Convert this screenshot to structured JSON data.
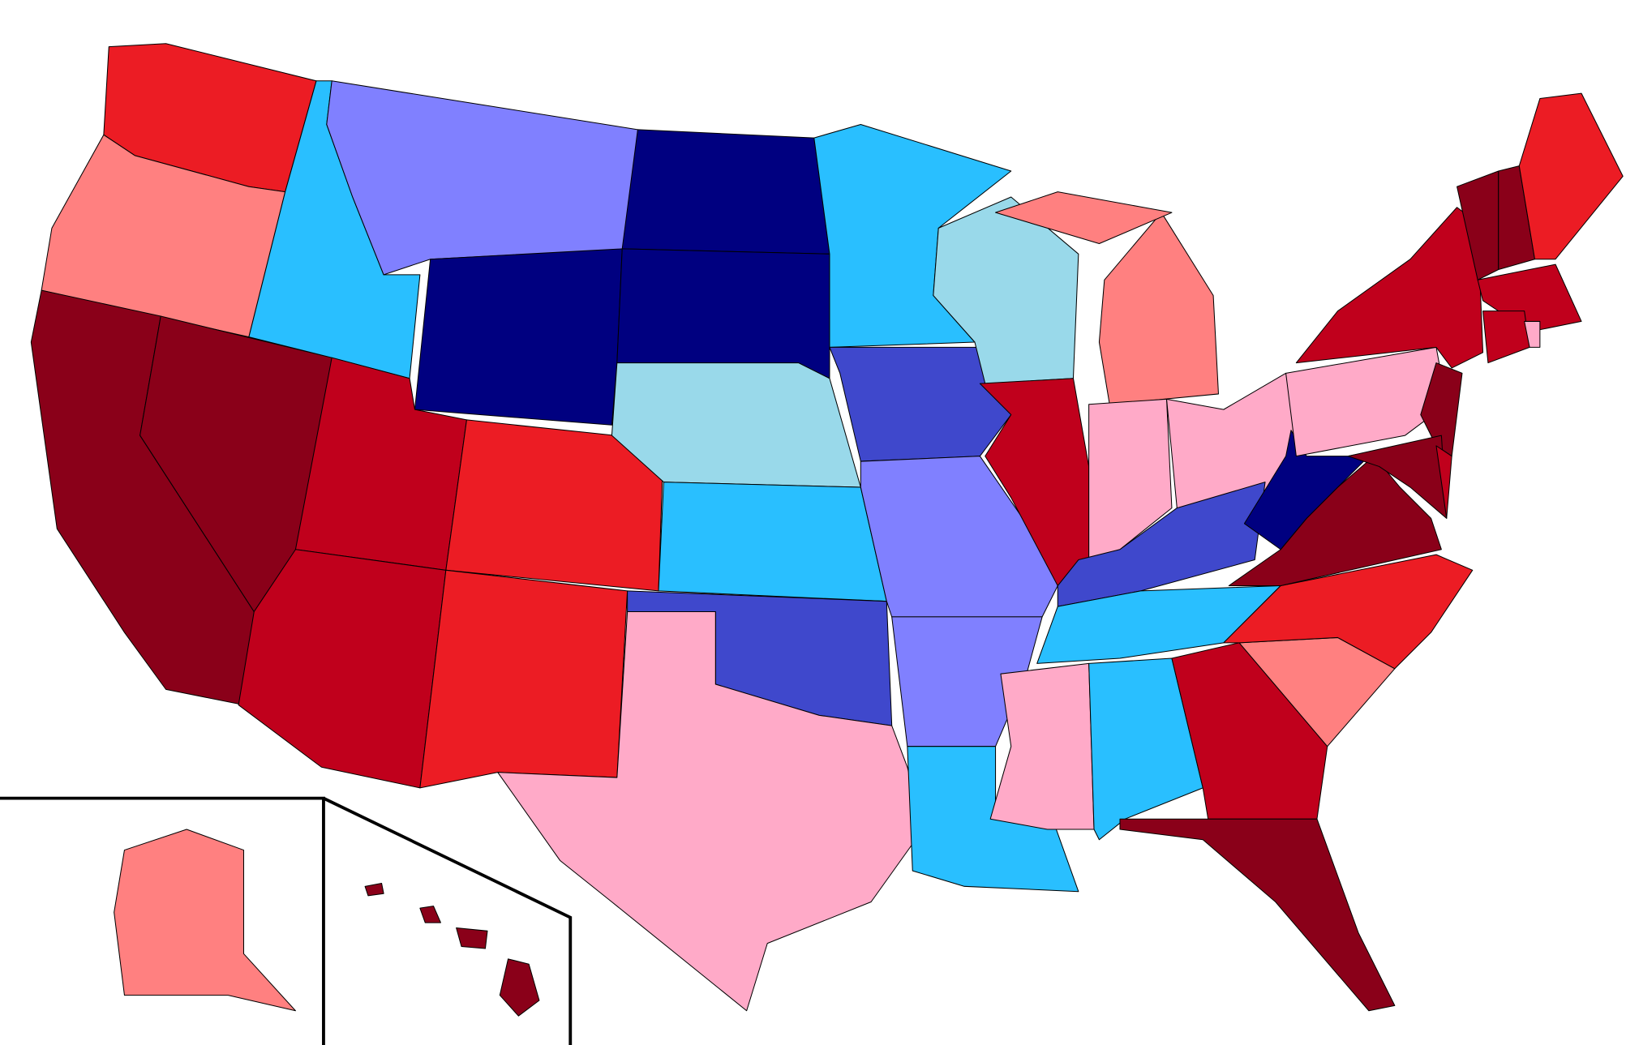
{
  "map": {
    "palette": [
      "#8a0019",
      "#c0001c",
      "#ec1c24",
      "#ff8080",
      "#ffaac8",
      "#99d9ea",
      "#29bfff",
      "#8080ff",
      "#3f48cc",
      "#000080"
    ]
  }
}
